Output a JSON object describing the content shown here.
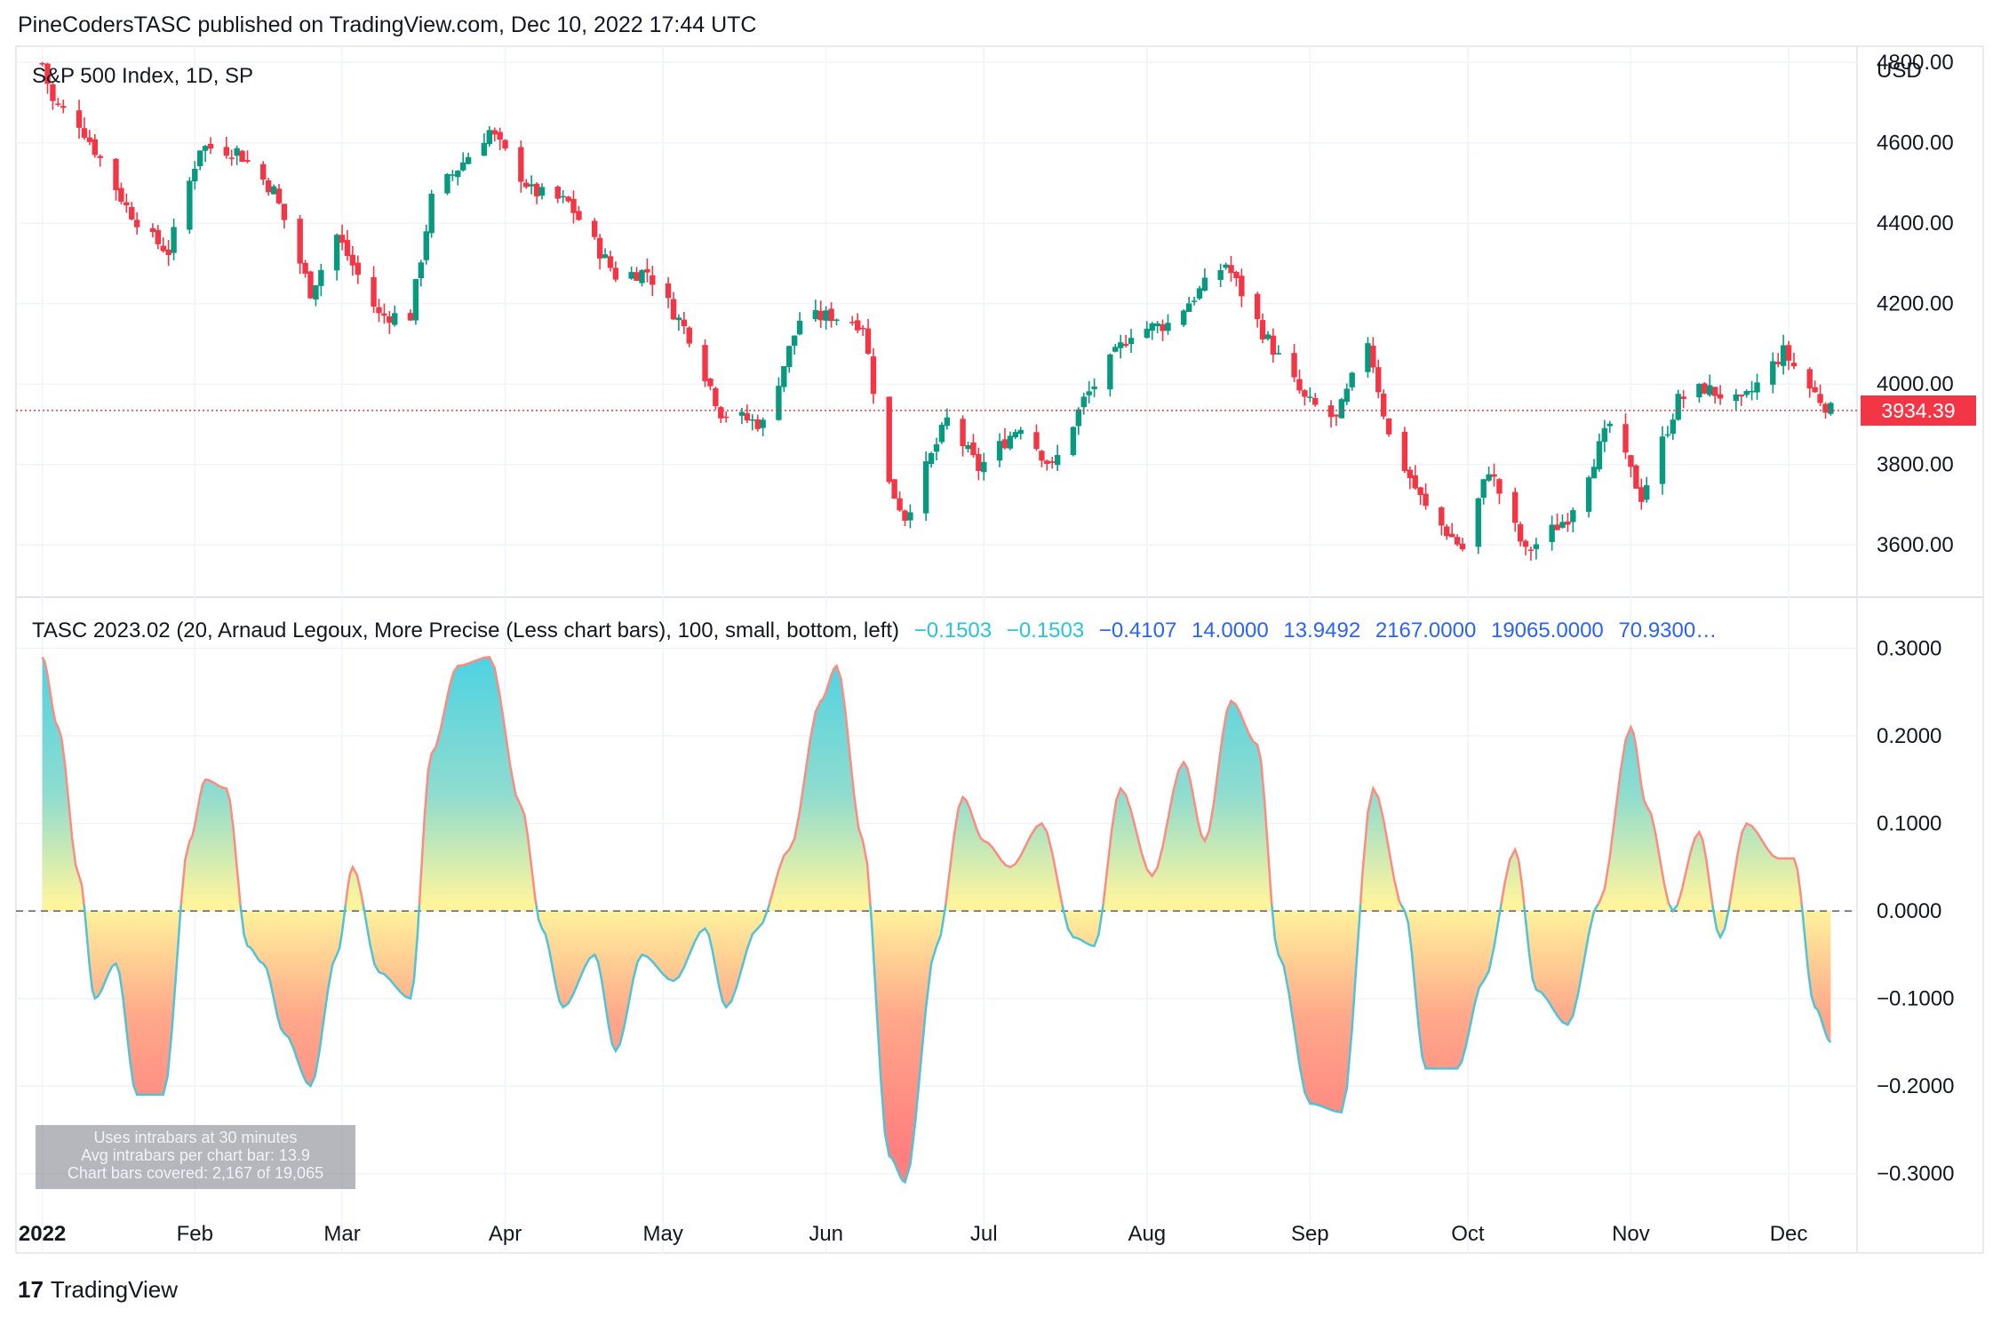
{
  "header": {
    "publish_text": "PineCodersTASC published on TradingView.com, Dec 10, 2022 17:44 UTC"
  },
  "price_pane": {
    "symbol_title": "S&P 500 Index, 1D, SP",
    "currency": "USD",
    "last_price_label": "3934.39",
    "up_color": "#089981",
    "down_color": "#f23645"
  },
  "indicator_pane": {
    "legend_title": "TASC 2023.02 (20, Arnaud Legoux, More Precise (Less chart bars), 100, small, bottom, left)",
    "legend_values": [
      {
        "text": "−0.1503",
        "color": "#26c6da"
      },
      {
        "text": "−0.1503",
        "color": "#26c6da"
      },
      {
        "text": "−0.4107",
        "color": "#2962ff"
      },
      {
        "text": "14.0000",
        "color": "#2962ff"
      },
      {
        "text": "13.9492",
        "color": "#2962ff"
      },
      {
        "text": "2167.0000",
        "color": "#2962ff"
      },
      {
        "text": "19065.0000",
        "color": "#2962ff"
      },
      {
        "text": "70.9300…",
        "color": "#2962ff"
      }
    ],
    "info_box": [
      "Uses intrabars at 30 minutes",
      "Avg intrabars per chart bar: 13.9",
      "Chart bars covered: 2,167 of 19,065"
    ]
  },
  "footer": {
    "logo_mark": "17",
    "logo_text": "TradingView"
  },
  "chart_data": [
    {
      "type": "candlestick",
      "title": "S&P 500 Index, 1D, SP",
      "ylabel": "USD",
      "ylim": [
        3470,
        4840
      ],
      "yticks": [
        "4800.00",
        "4600.00",
        "4400.00",
        "4200.00",
        "4000.00",
        "3800.00",
        "3600.00"
      ],
      "last_value": 3934.39,
      "x_labels": [
        "2022",
        "Feb",
        "Mar",
        "Apr",
        "May",
        "Jun",
        "Jul",
        "Aug",
        "Sep",
        "Oct",
        "Nov",
        "Dec"
      ],
      "close_path": [
        [
          "2022-01-03",
          4797
        ],
        [
          "2022-01-05",
          4700
        ],
        [
          "2022-01-10",
          4650
        ],
        [
          "2022-01-14",
          4560
        ],
        [
          "2022-01-19",
          4440
        ],
        [
          "2022-01-24",
          4360
        ],
        [
          "2022-01-27",
          4330
        ],
        [
          "2022-02-02",
          4590
        ],
        [
          "2022-02-09",
          4580
        ],
        [
          "2022-02-16",
          4480
        ],
        [
          "2022-02-23",
          4230
        ],
        [
          "2022-02-28",
          4370
        ],
        [
          "2022-03-08",
          4170
        ],
        [
          "2022-03-14",
          4170
        ],
        [
          "2022-03-18",
          4460
        ],
        [
          "2022-03-29",
          4630
        ],
        [
          "2022-04-06",
          4480
        ],
        [
          "2022-04-13",
          4450
        ],
        [
          "2022-04-22",
          4270
        ],
        [
          "2022-04-28",
          4280
        ],
        [
          "2022-05-06",
          4120
        ],
        [
          "2022-05-12",
          3930
        ],
        [
          "2022-05-20",
          3900
        ],
        [
          "2022-05-27",
          4160
        ],
        [
          "2022-06-02",
          4170
        ],
        [
          "2022-06-08",
          4150
        ],
        [
          "2022-06-13",
          3750
        ],
        [
          "2022-06-16",
          3670
        ],
        [
          "2022-06-24",
          3910
        ],
        [
          "2022-06-30",
          3790
        ],
        [
          "2022-07-08",
          3900
        ],
        [
          "2022-07-14",
          3790
        ],
        [
          "2022-07-20",
          3960
        ],
        [
          "2022-07-29",
          4130
        ],
        [
          "2022-08-05",
          4150
        ],
        [
          "2022-08-16",
          4300
        ],
        [
          "2022-08-23",
          4130
        ],
        [
          "2022-08-31",
          3960
        ],
        [
          "2022-09-06",
          3910
        ],
        [
          "2022-09-12",
          4110
        ],
        [
          "2022-09-16",
          3870
        ],
        [
          "2022-09-23",
          3690
        ],
        [
          "2022-09-30",
          3590
        ],
        [
          "2022-10-05",
          3790
        ],
        [
          "2022-10-12",
          3580
        ],
        [
          "2022-10-20",
          3670
        ],
        [
          "2022-10-28",
          3900
        ],
        [
          "2022-11-03",
          3720
        ],
        [
          "2022-11-10",
          3960
        ],
        [
          "2022-11-15",
          3990
        ],
        [
          "2022-11-22",
          3950
        ],
        [
          "2022-11-30",
          4080
        ],
        [
          "2022-12-05",
          3990
        ],
        [
          "2022-12-09",
          3934
        ]
      ]
    },
    {
      "type": "area",
      "title": "TASC 2023.02",
      "ylim": [
        -0.34,
        0.33
      ],
      "yticks": [
        "0.3000",
        "0.2000",
        "0.1000",
        "0.0000",
        "−0.1000",
        "−0.2000",
        "−0.3000"
      ],
      "baseline": 0,
      "x_labels": [
        "2022",
        "Feb",
        "Mar",
        "Apr",
        "May",
        "Jun",
        "Jul",
        "Aug",
        "Sep",
        "Oct",
        "Nov",
        "Dec"
      ],
      "series": [
        {
          "x": [
            "2022-01-03",
            "2022-01-06",
            "2022-01-10",
            "2022-01-13",
            "2022-01-17",
            "2022-01-21",
            "2022-01-26",
            "2022-01-31",
            "2022-02-03",
            "2022-02-07",
            "2022-02-11",
            "2022-02-14",
            "2022-02-18",
            "2022-02-23",
            "2022-02-28",
            "2022-03-03",
            "2022-03-08",
            "2022-03-14",
            "2022-03-18",
            "2022-03-23",
            "2022-03-29",
            "2022-04-04",
            "2022-04-08",
            "2022-04-12",
            "2022-04-18",
            "2022-04-22",
            "2022-04-27",
            "2022-05-03",
            "2022-05-09",
            "2022-05-13",
            "2022-05-19",
            "2022-05-25",
            "2022-05-31",
            "2022-06-03",
            "2022-06-08",
            "2022-06-13",
            "2022-06-16",
            "2022-06-22",
            "2022-06-27",
            "2022-07-01",
            "2022-07-06",
            "2022-07-12",
            "2022-07-18",
            "2022-07-22",
            "2022-07-27",
            "2022-08-02",
            "2022-08-08",
            "2022-08-12",
            "2022-08-17",
            "2022-08-22",
            "2022-08-26",
            "2022-09-01",
            "2022-09-07",
            "2022-09-13",
            "2022-09-19",
            "2022-09-23",
            "2022-09-29",
            "2022-10-04",
            "2022-10-10",
            "2022-10-14",
            "2022-10-20",
            "2022-10-26",
            "2022-11-01",
            "2022-11-04",
            "2022-11-09",
            "2022-11-14",
            "2022-11-18",
            "2022-11-23",
            "2022-11-29",
            "2022-12-02",
            "2022-12-06",
            "2022-12-09"
          ],
          "values": [
            0.29,
            0.21,
            0.04,
            -0.1,
            -0.06,
            -0.21,
            -0.21,
            0.08,
            0.15,
            0.14,
            -0.04,
            -0.06,
            -0.14,
            -0.2,
            -0.05,
            0.05,
            -0.07,
            -0.1,
            0.18,
            0.28,
            0.29,
            0.12,
            -0.02,
            -0.11,
            -0.05,
            -0.16,
            -0.05,
            -0.08,
            -0.02,
            -0.11,
            -0.02,
            0.07,
            0.24,
            0.28,
            0.08,
            -0.28,
            -0.31,
            -0.04,
            0.13,
            0.08,
            0.05,
            0.1,
            -0.03,
            -0.04,
            0.14,
            0.04,
            0.17,
            0.08,
            0.24,
            0.19,
            -0.05,
            -0.22,
            -0.23,
            0.14,
            0.0,
            -0.18,
            -0.18,
            -0.08,
            0.07,
            -0.09,
            -0.13,
            0.01,
            0.21,
            0.12,
            0.0,
            0.09,
            -0.03,
            0.1,
            0.06,
            0.06,
            -0.11,
            -0.15
          ]
        }
      ]
    }
  ]
}
